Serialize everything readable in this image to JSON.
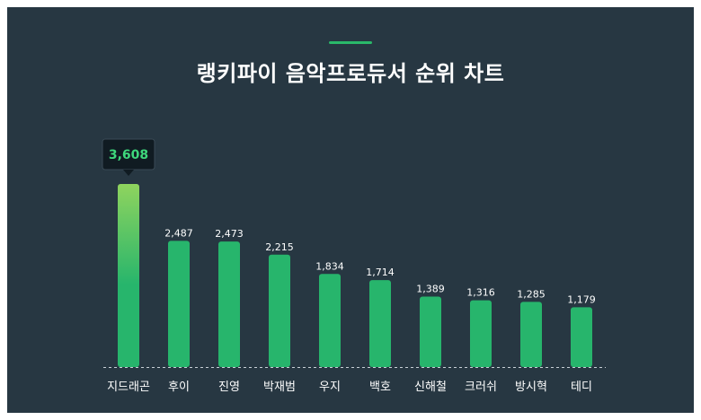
{
  "title": "랭키파이 음악프로듀서 순위 차트",
  "colors": {
    "background": "#273742",
    "bar": "#27b56c",
    "bar_top_highlight": "#8fd45e",
    "accent": "#2ab86a",
    "tooltip_bg": "#101b22",
    "tooltip_text": "#3ed77c"
  },
  "chart_data": {
    "type": "bar",
    "title": "랭키파이 음악프로듀서 순위 차트",
    "categories": [
      "지드래곤",
      "후이",
      "진영",
      "박재범",
      "우지",
      "백호",
      "신해철",
      "크러쉬",
      "방시혁",
      "테디"
    ],
    "values": [
      3608,
      2487,
      2473,
      2215,
      1834,
      1714,
      1389,
      1316,
      1285,
      1179
    ],
    "value_labels": [
      "3,608",
      "2,487",
      "2,473",
      "2,215",
      "1,834",
      "1,714",
      "1,389",
      "1,316",
      "1,285",
      "1,179"
    ],
    "highlight_index": 0,
    "xlabel": "",
    "ylabel": "",
    "ylim": [
      0,
      3608
    ],
    "grid": false,
    "baseline": "dashed"
  }
}
